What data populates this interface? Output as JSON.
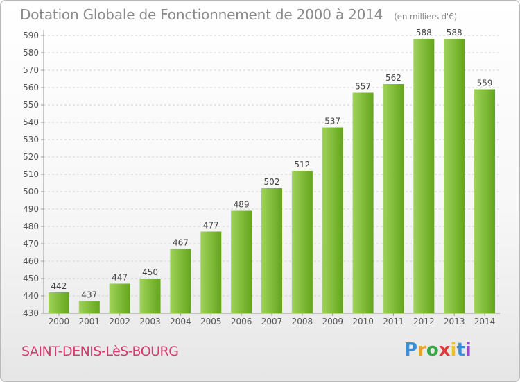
{
  "header": {
    "title": "Dotation Globale de Fonctionnement de 2000 à 2014",
    "unit": "(en milliers d'€)"
  },
  "footer": {
    "commune": "SAINT-DENIS-LèS-BOURG",
    "logo_letters": [
      "P",
      "r",
      "o",
      "x",
      "i",
      "t",
      "i"
    ]
  },
  "colors": {
    "bar_light": "#9fd35a",
    "bar_dark": "#64a51c",
    "commune_text": "#d63a6e",
    "title_text": "#8a8a8a"
  },
  "chart_data": {
    "type": "bar",
    "categories": [
      "2000",
      "2001",
      "2002",
      "2003",
      "2004",
      "2005",
      "2006",
      "2007",
      "2008",
      "2009",
      "2010",
      "2011",
      "2012",
      "2013",
      "2014"
    ],
    "values": [
      442,
      437,
      447,
      450,
      467,
      477,
      489,
      502,
      512,
      537,
      557,
      562,
      588,
      588,
      559
    ],
    "ylim": [
      430,
      590
    ],
    "yticks": [
      430,
      440,
      450,
      460,
      470,
      480,
      490,
      500,
      510,
      520,
      530,
      540,
      550,
      560,
      570,
      580,
      590
    ],
    "grid": true,
    "legend": "none"
  }
}
